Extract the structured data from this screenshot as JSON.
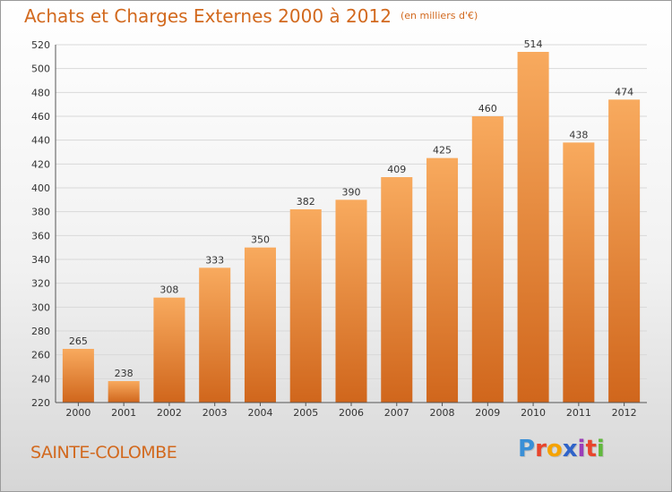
{
  "header": {
    "title": "Achats et Charges Externes 2000 à 2012",
    "unit": "(en milliers d'€)"
  },
  "footer": {
    "city": "SAINTE-COLOMBE",
    "logo_letters": [
      "P",
      "r",
      "o",
      "x",
      "i",
      "t",
      "i"
    ],
    "logo_colors": [
      "#3a8fd6",
      "#e8452c",
      "#f5a300",
      "#2f63c9",
      "#9b3db8",
      "#e8452c",
      "#60b83c"
    ]
  },
  "colors": {
    "title": "#d2691e",
    "bar_top": "#f8aa5e",
    "bar_bottom": "#d0661c",
    "grid": "#d9d9d9",
    "axis_text": "#333333"
  },
  "chart_data": {
    "type": "bar",
    "categories": [
      "2000",
      "2001",
      "2002",
      "2003",
      "2004",
      "2005",
      "2006",
      "2007",
      "2008",
      "2009",
      "2010",
      "2011",
      "2012"
    ],
    "values": [
      265,
      238,
      308,
      333,
      350,
      382,
      390,
      409,
      425,
      460,
      514,
      438,
      474
    ],
    "ylim": [
      220,
      520
    ],
    "yticks": [
      220,
      240,
      260,
      280,
      300,
      320,
      340,
      360,
      380,
      400,
      420,
      440,
      460,
      480,
      500,
      520
    ],
    "grid": true,
    "legend": "none"
  }
}
